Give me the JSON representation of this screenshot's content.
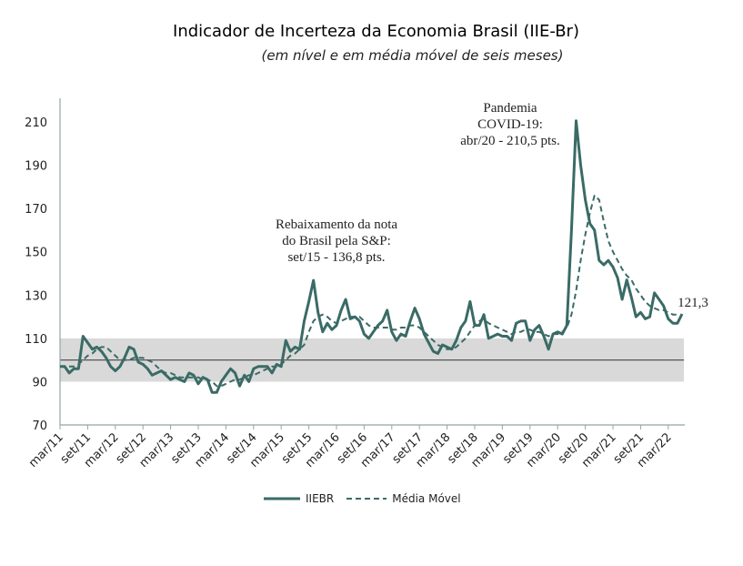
{
  "chart_data": {
    "type": "line",
    "title": "Indicador de Incerteza da Economia Brasil (IIE-Br)",
    "subtitle": "(em nível e em média móvel de seis meses)",
    "xlabel": "",
    "ylabel": "",
    "ylim": [
      70,
      215
    ],
    "yticks": [
      "70",
      "90",
      "110",
      "130",
      "150",
      "170",
      "190",
      "210"
    ],
    "ytick_values": [
      70,
      90,
      110,
      130,
      150,
      170,
      190,
      210
    ],
    "xtick_labels": [
      "mar/11",
      "set/11",
      "mar/12",
      "set/12",
      "mar/13",
      "set/13",
      "mar/14",
      "set/14",
      "mar/15",
      "set/15",
      "mar/16",
      "set/16",
      "mar/17",
      "set/17",
      "mar/18",
      "set/18",
      "mar/19",
      "set/19",
      "mar/20",
      "set/20",
      "mar/21",
      "set/21",
      "mar/22"
    ],
    "band": {
      "low": 90,
      "high": 110,
      "mid": 100
    },
    "series": [
      {
        "name": "IIEBR",
        "style": "solid",
        "values": [
          97,
          97,
          94,
          96,
          96,
          111,
          108,
          105,
          106,
          104,
          101,
          97,
          95,
          97,
          101,
          106,
          105,
          99,
          98,
          96,
          93,
          94,
          95,
          93,
          91,
          92,
          91,
          90,
          94,
          93,
          89,
          92,
          91,
          85,
          85,
          90,
          93,
          96,
          94,
          88,
          93,
          90,
          96,
          97,
          97,
          97,
          94,
          98,
          97,
          109,
          104,
          106,
          105,
          118,
          127,
          136.8,
          122,
          113,
          117,
          114,
          116,
          123,
          128,
          119,
          120,
          118,
          112,
          110,
          113,
          116,
          118,
          123,
          113,
          109,
          112,
          111,
          118,
          124,
          119,
          112,
          108,
          104,
          103,
          107,
          106,
          105,
          109,
          115,
          118,
          127,
          116,
          116,
          121,
          110,
          111,
          112,
          111,
          111,
          109,
          117,
          118,
          118,
          109,
          114,
          116,
          111,
          105,
          112,
          113,
          112,
          116,
          160,
          210.5,
          190,
          174,
          163,
          160,
          146,
          144,
          146,
          143,
          138,
          128,
          137,
          129,
          120,
          122,
          119,
          120,
          131,
          128,
          125,
          119,
          117,
          117,
          121.3
        ]
      },
      {
        "name": "Média Móvel",
        "style": "dashed",
        "values": [
          97,
          97,
          97,
          97,
          98,
          100,
          102,
          103,
          105,
          106,
          106,
          104,
          102,
          100,
          100,
          100,
          101,
          101,
          101,
          100,
          99,
          97,
          95,
          94,
          94,
          93,
          92,
          92,
          92,
          92,
          92,
          91,
          91,
          90,
          88,
          88,
          89,
          90,
          91,
          91,
          92,
          93,
          93,
          94,
          95,
          96,
          97,
          97,
          98,
          100,
          102,
          103,
          105,
          107,
          113,
          118,
          120,
          121,
          120,
          118,
          117,
          118,
          119,
          120,
          120,
          120,
          118,
          116,
          115,
          115,
          115,
          115,
          114,
          114,
          115,
          115,
          116,
          116,
          115,
          113,
          111,
          109,
          107,
          106,
          105,
          105,
          106,
          108,
          110,
          113,
          116,
          118,
          119,
          117,
          116,
          115,
          114,
          113,
          112,
          113,
          113,
          114,
          114,
          113,
          113,
          112,
          111,
          112,
          112,
          113,
          115,
          121,
          132,
          146,
          158,
          168,
          176,
          174,
          164,
          155,
          150,
          146,
          142,
          139,
          137,
          133,
          130,
          127,
          125,
          124,
          123,
          123,
          122,
          121,
          121
        ]
      }
    ],
    "annotations": [
      {
        "lines": [
          "Rebaixamento  da nota",
          "do Brasil pela S&P:",
          "set/15 - 136,8 pts."
        ]
      },
      {
        "lines": [
          "Pandemia",
          "COVID-19:",
          "abr/20 - 210,5 pts."
        ]
      },
      {
        "lines": [
          "121,3"
        ]
      }
    ],
    "legend": {
      "position": "bottom",
      "entries": [
        "IIEBR",
        "Média Móvel"
      ]
    },
    "colors": {
      "line": "#3a6b66",
      "band": "#d9d9d9",
      "axis": "#8fa8a5",
      "midline": "#555555"
    }
  }
}
